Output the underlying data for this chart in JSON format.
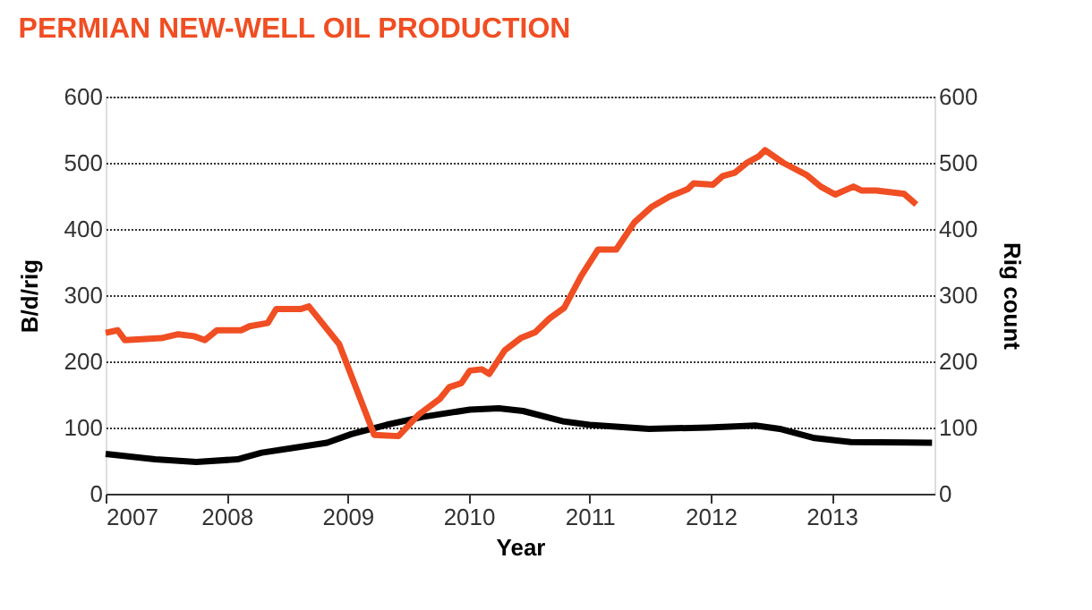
{
  "chart_data": {
    "type": "line",
    "title": "PERMIAN NEW-WELL OIL PRODUCTION",
    "xlabel": "Year",
    "ylabel": "B/d/rig",
    "y2label": "Rig count",
    "xlim": [
      2007,
      2013.85
    ],
    "xticks": [
      2007,
      2008,
      2009,
      2010,
      2011,
      2012,
      2013
    ],
    "ylim": [
      0,
      600
    ],
    "yticks": [
      0,
      100,
      200,
      300,
      400,
      500,
      600
    ],
    "y2lim": [
      0,
      600
    ],
    "y2ticks": [
      0,
      100,
      200,
      300,
      400,
      500,
      600
    ],
    "grid": "y",
    "marker": "none",
    "line_style": "solid",
    "series": [
      {
        "color": "#000000",
        "x": [
          2007.0,
          2007.41,
          2007.75,
          2008.09,
          2008.29,
          2008.54,
          2008.83,
          2009.03,
          2009.32,
          2009.62,
          2010.01,
          2010.25,
          2010.45,
          2010.79,
          2011.0,
          2011.49,
          2011.98,
          2012.37,
          2012.57,
          2012.86,
          2013.16,
          2013.83
        ],
        "values": [
          60,
          52,
          48,
          52,
          62,
          69,
          77,
          90,
          104,
          116,
          127,
          129,
          125,
          109,
          104,
          98,
          100,
          103,
          98,
          84,
          78,
          77
        ]
      },
      {
        "color": "#f04e23",
        "axis": "y2",
        "x": [
          2007.0,
          2007.1,
          2007.16,
          2007.46,
          2007.6,
          2007.73,
          2007.82,
          2007.92,
          2008.12,
          2008.19,
          2008.34,
          2008.41,
          2008.61,
          2008.68,
          2008.93,
          2009.22,
          2009.42,
          2009.59,
          2009.76,
          2009.84,
          2009.94,
          2010.01,
          2010.11,
          2010.17,
          2010.3,
          2010.43,
          2010.55,
          2010.67,
          2010.79,
          2010.93,
          2011.07,
          2011.22,
          2011.37,
          2011.51,
          2011.66,
          2011.81,
          2011.86,
          2012.02,
          2012.1,
          2012.2,
          2012.3,
          2012.4,
          2012.45,
          2012.6,
          2012.79,
          2012.91,
          2013.03,
          2013.18,
          2013.25,
          2013.37,
          2013.6,
          2013.7
        ],
        "values": [
          243,
          247,
          232,
          235,
          241,
          238,
          232,
          247,
          247,
          253,
          258,
          279,
          279,
          283,
          226,
          89,
          87,
          120,
          143,
          161,
          167,
          186,
          188,
          181,
          217,
          235,
          244,
          265,
          281,
          329,
          369,
          369,
          410,
          433,
          449,
          460,
          469,
          467,
          480,
          485,
          500,
          510,
          519,
          500,
          482,
          464,
          452,
          464,
          458,
          458,
          453,
          437
        ]
      }
    ]
  }
}
